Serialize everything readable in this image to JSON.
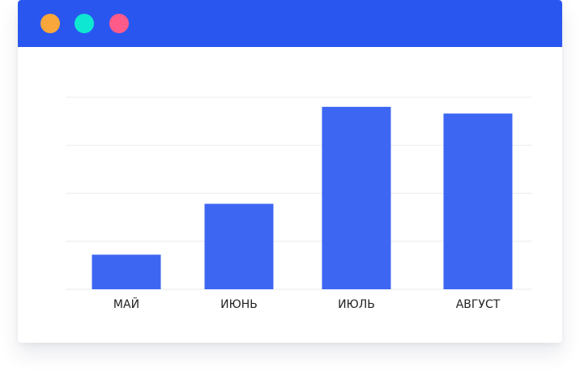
{
  "window": {
    "titlebar_color": "#2a56f0",
    "buttons": [
      {
        "name": "dot-orange",
        "color": "#f9a63a"
      },
      {
        "name": "dot-teal",
        "color": "#0ee8d2"
      },
      {
        "name": "dot-pink",
        "color": "#ff5b8a"
      }
    ]
  },
  "chart_data": {
    "type": "bar",
    "categories": [
      "МАЙ",
      "ИЮНЬ",
      "ИЮЛЬ",
      "АВГУСТ"
    ],
    "values": [
      0.72,
      1.78,
      3.8,
      3.66
    ],
    "ylim": [
      0,
      4
    ],
    "grid": true,
    "bar_color": "#3d66f2",
    "grid_color": "#e9ebef"
  }
}
